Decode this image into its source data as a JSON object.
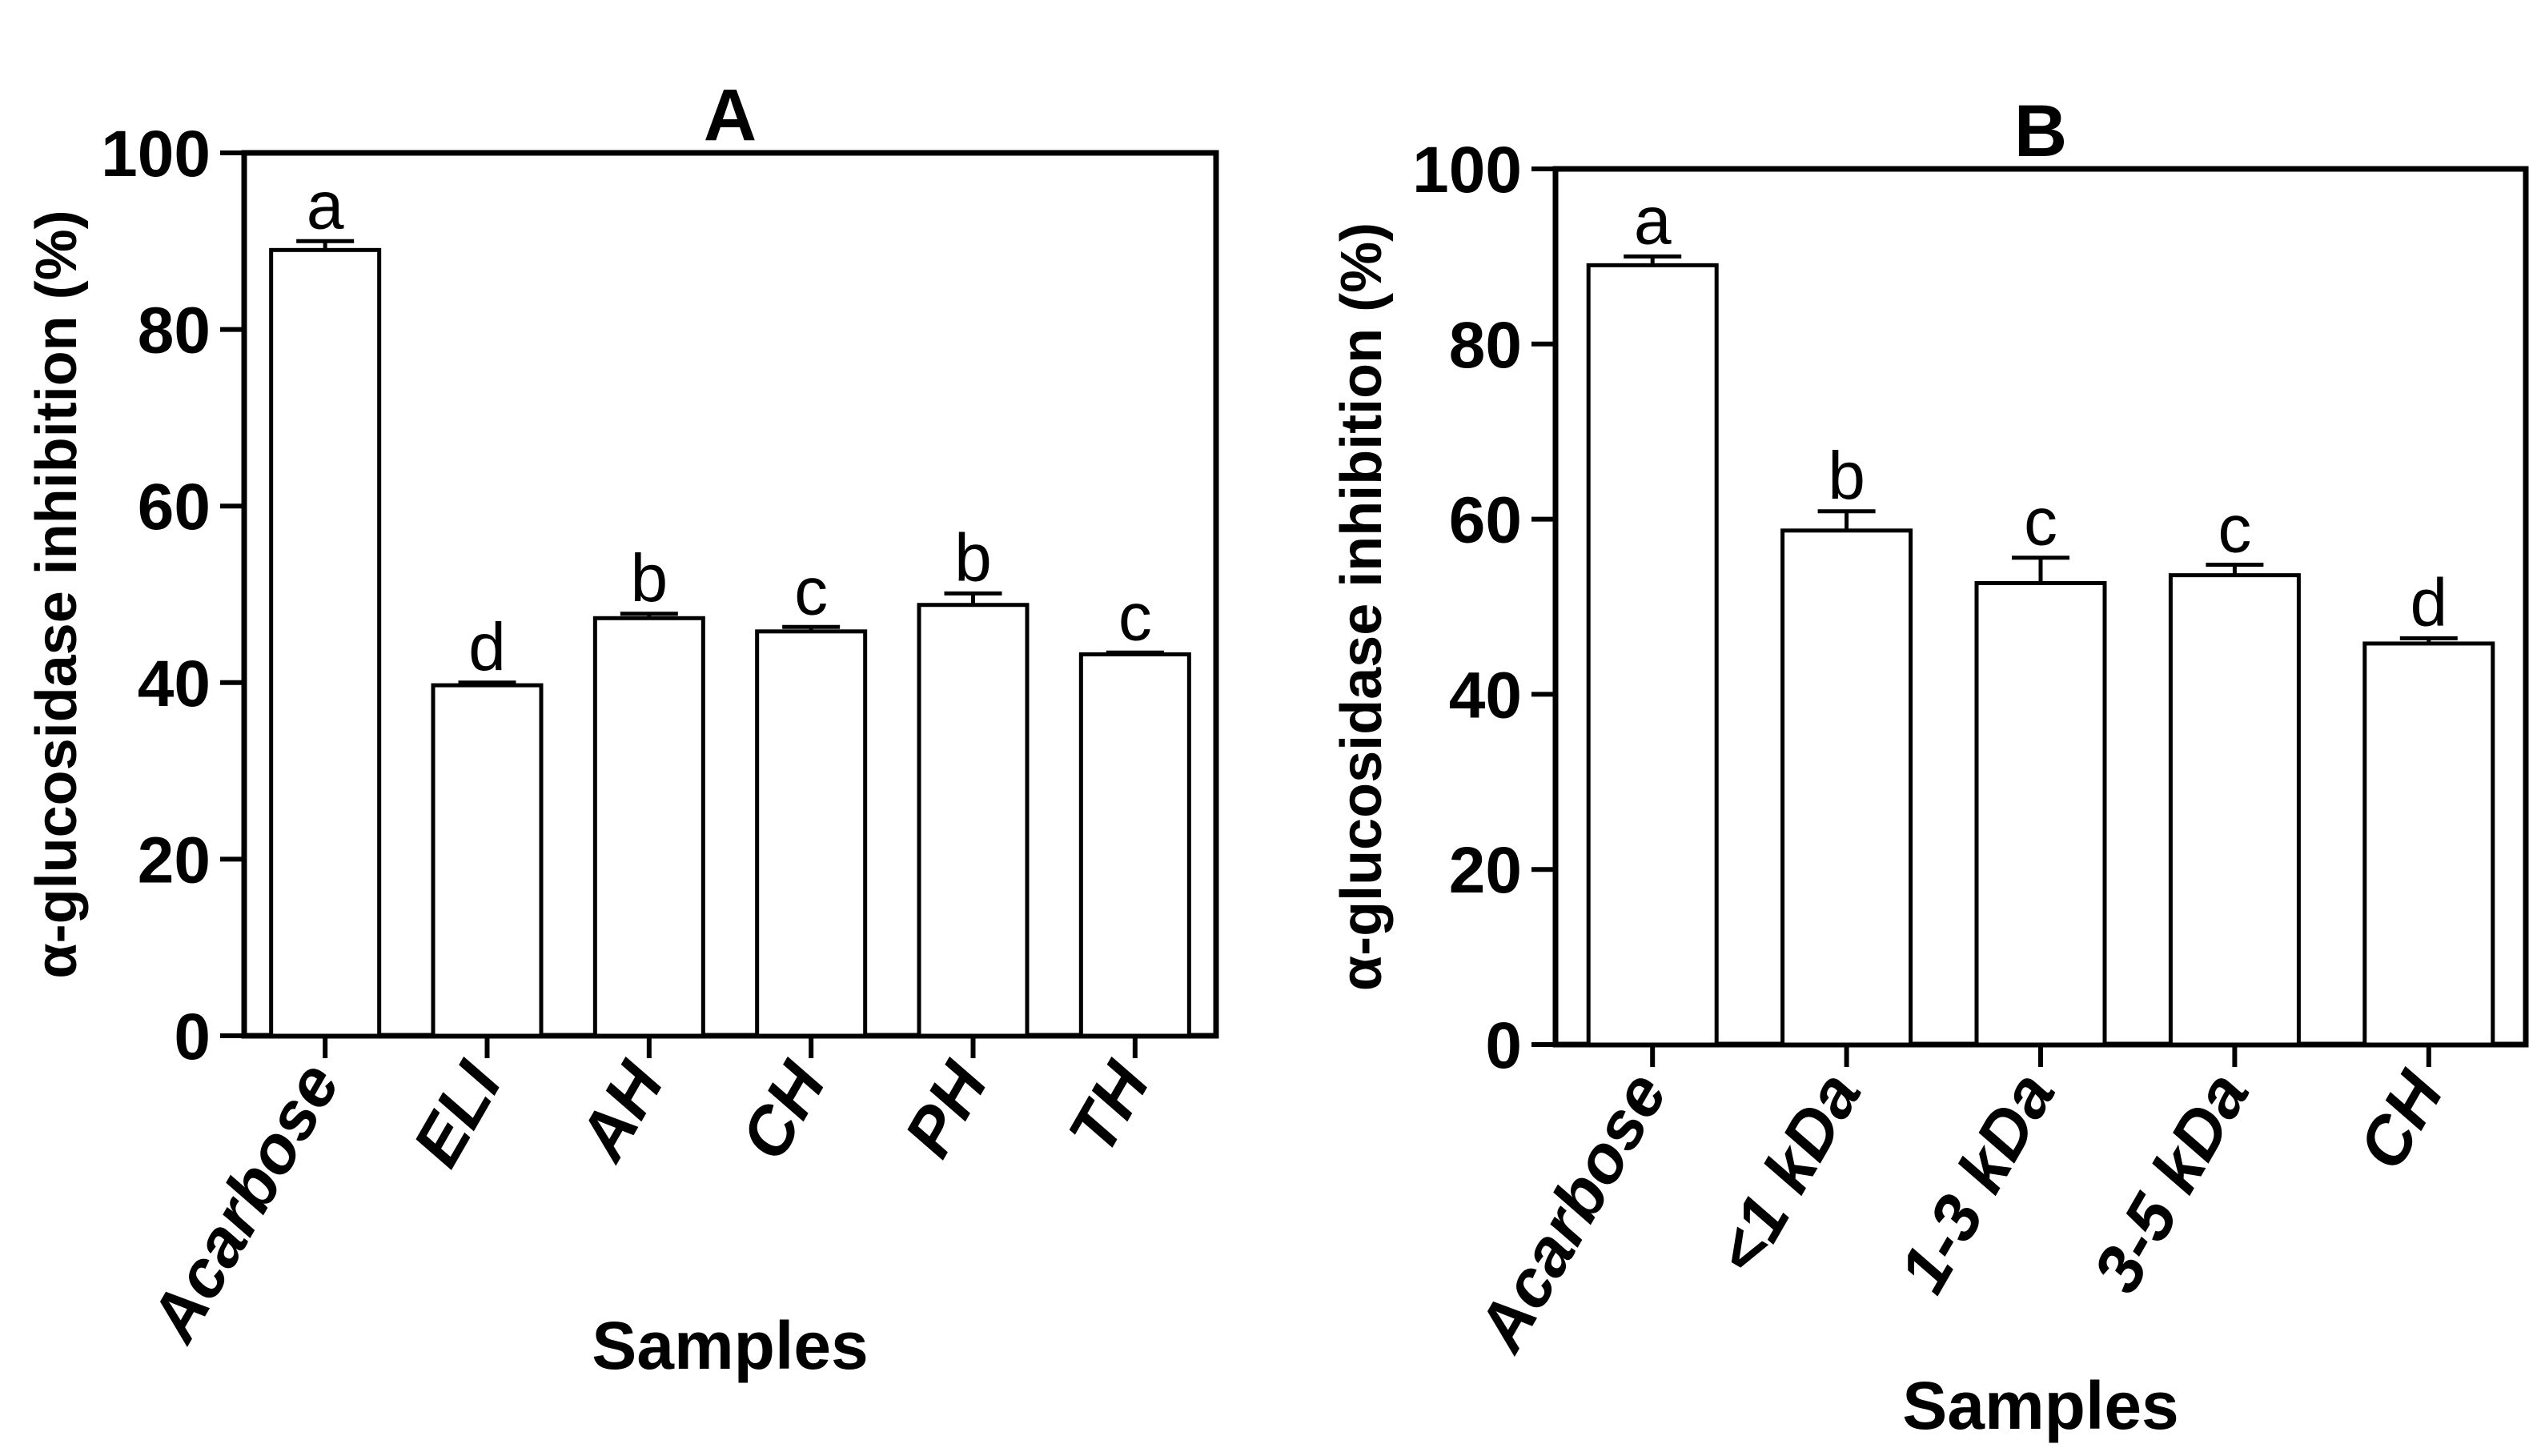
{
  "chart_data": [
    {
      "panel": "A",
      "type": "bar",
      "title": "A",
      "xlabel": "Samples",
      "ylabel": "α-glucosidase inhibition (%)",
      "ylim": [
        0,
        100
      ],
      "yticks": [
        0,
        20,
        40,
        60,
        80,
        100
      ],
      "categories": [
        "Acarbose",
        "ELI",
        "AH",
        "CH",
        "PH",
        "TH"
      ],
      "values": [
        89.0,
        39.7,
        47.3,
        45.8,
        48.8,
        43.2
      ],
      "errors": [
        1.0,
        0.3,
        0.5,
        0.5,
        1.3,
        0.2
      ],
      "significance": [
        "a",
        "d",
        "b",
        "c",
        "b",
        "c"
      ]
    },
    {
      "panel": "B",
      "type": "bar",
      "title": "B",
      "xlabel": "Samples",
      "ylabel": "α-glucosidase inhibition (%)",
      "ylim": [
        0,
        100
      ],
      "yticks": [
        0,
        20,
        40,
        60,
        80,
        100
      ],
      "categories": [
        "Acarbose",
        "<1 kDa",
        "1-3 kDa",
        "3-5 kDa",
        "CH"
      ],
      "values": [
        89.0,
        58.7,
        52.7,
        53.6,
        45.8
      ],
      "errors": [
        1.0,
        2.2,
        2.9,
        1.2,
        0.6
      ],
      "significance": [
        "a",
        "b",
        "c",
        "c",
        "d"
      ]
    }
  ]
}
